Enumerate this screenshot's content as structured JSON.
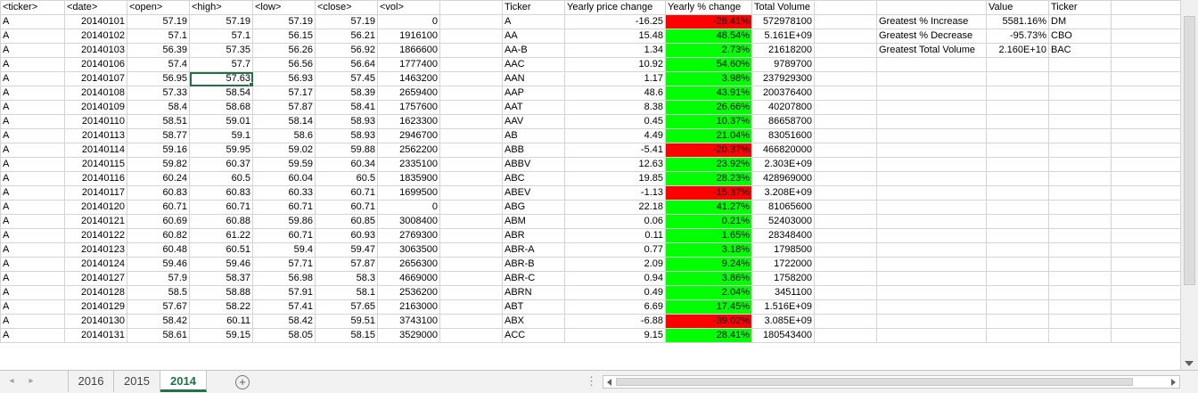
{
  "headers": {
    "ticker": "<ticker>",
    "date": "<date>",
    "open": "<open>",
    "high": "<high>",
    "low": "<low>",
    "close": "<close>",
    "vol": "<vol>",
    "sum_ticker": "Ticker",
    "yearly_price_change": "Yearly price change",
    "yearly_pct_change": "Yearly % change",
    "total_volume": "Total Volume",
    "value": "Value",
    "ticker2": "Ticker"
  },
  "raw_rows": [
    [
      "A",
      "20140101",
      "57.19",
      "57.19",
      "57.19",
      "57.19",
      "0"
    ],
    [
      "A",
      "20140102",
      "57.1",
      "57.1",
      "56.15",
      "56.21",
      "1916100"
    ],
    [
      "A",
      "20140103",
      "56.39",
      "57.35",
      "56.26",
      "56.92",
      "1866600"
    ],
    [
      "A",
      "20140106",
      "57.4",
      "57.7",
      "56.56",
      "56.64",
      "1777400"
    ],
    [
      "A",
      "20140107",
      "56.95",
      "57.63",
      "56.93",
      "57.45",
      "1463200"
    ],
    [
      "A",
      "20140108",
      "57.33",
      "58.54",
      "57.17",
      "58.39",
      "2659400"
    ],
    [
      "A",
      "20140109",
      "58.4",
      "58.68",
      "57.87",
      "58.41",
      "1757600"
    ],
    [
      "A",
      "20140110",
      "58.51",
      "59.01",
      "58.14",
      "58.93",
      "1623300"
    ],
    [
      "A",
      "20140113",
      "58.77",
      "59.1",
      "58.6",
      "58.93",
      "2946700"
    ],
    [
      "A",
      "20140114",
      "59.16",
      "59.95",
      "59.02",
      "59.88",
      "2562200"
    ],
    [
      "A",
      "20140115",
      "59.82",
      "60.37",
      "59.59",
      "60.34",
      "2335100"
    ],
    [
      "A",
      "20140116",
      "60.24",
      "60.5",
      "60.04",
      "60.5",
      "1835900"
    ],
    [
      "A",
      "20140117",
      "60.83",
      "60.83",
      "60.33",
      "60.71",
      "1699500"
    ],
    [
      "A",
      "20140120",
      "60.71",
      "60.71",
      "60.71",
      "60.71",
      "0"
    ],
    [
      "A",
      "20140121",
      "60.69",
      "60.88",
      "59.86",
      "60.85",
      "3008400"
    ],
    [
      "A",
      "20140122",
      "60.82",
      "61.22",
      "60.71",
      "60.93",
      "2769300"
    ],
    [
      "A",
      "20140123",
      "60.48",
      "60.51",
      "59.4",
      "59.47",
      "3063500"
    ],
    [
      "A",
      "20140124",
      "59.46",
      "59.46",
      "57.71",
      "57.87",
      "2656300"
    ],
    [
      "A",
      "20140127",
      "57.9",
      "58.37",
      "56.98",
      "58.3",
      "4669000"
    ],
    [
      "A",
      "20140128",
      "58.5",
      "58.88",
      "57.91",
      "58.1",
      "2536200"
    ],
    [
      "A",
      "20140129",
      "57.67",
      "58.22",
      "57.41",
      "57.65",
      "2163000"
    ],
    [
      "A",
      "20140130",
      "58.42",
      "60.11",
      "58.42",
      "59.51",
      "3743100"
    ],
    [
      "A",
      "20140131",
      "58.61",
      "59.15",
      "58.05",
      "58.15",
      "3529000"
    ]
  ],
  "summary_rows": [
    [
      "A",
      "-16.25",
      "-28.41%",
      "572978100"
    ],
    [
      "AA",
      "15.48",
      "48.54%",
      "5.161E+09"
    ],
    [
      "AA-B",
      "1.34",
      "2.73%",
      "21618200"
    ],
    [
      "AAC",
      "10.92",
      "54.60%",
      "9789700"
    ],
    [
      "AAN",
      "1.17",
      "3.98%",
      "237929300"
    ],
    [
      "AAP",
      "48.6",
      "43.91%",
      "200376400"
    ],
    [
      "AAT",
      "8.38",
      "26.66%",
      "40207800"
    ],
    [
      "AAV",
      "0.45",
      "10.37%",
      "86658700"
    ],
    [
      "AB",
      "4.49",
      "21.04%",
      "83051600"
    ],
    [
      "ABB",
      "-5.41",
      "-20.37%",
      "466820000"
    ],
    [
      "ABBV",
      "12.63",
      "23.92%",
      "2.303E+09"
    ],
    [
      "ABC",
      "19.85",
      "28.23%",
      "428969000"
    ],
    [
      "ABEV",
      "-1.13",
      "-15.37%",
      "3.208E+09"
    ],
    [
      "ABG",
      "22.18",
      "41.27%",
      "81065600"
    ],
    [
      "ABM",
      "0.06",
      "0.21%",
      "52403000"
    ],
    [
      "ABR",
      "0.11",
      "1.65%",
      "28348400"
    ],
    [
      "ABR-A",
      "0.77",
      "3.18%",
      "1798500"
    ],
    [
      "ABR-B",
      "2.09",
      "9.24%",
      "1722000"
    ],
    [
      "ABR-C",
      "0.94",
      "3.86%",
      "1758200"
    ],
    [
      "ABRN",
      "0.49",
      "2.04%",
      "3451100"
    ],
    [
      "ABT",
      "6.69",
      "17.45%",
      "1.516E+09"
    ],
    [
      "ABX",
      "-6.88",
      "-39.02%",
      "3.085E+09"
    ],
    [
      "ACC",
      "9.15",
      "28.41%",
      "180543400"
    ]
  ],
  "greatest": [
    {
      "label": "Greatest % Increase",
      "value": "5581.16%",
      "ticker": "DM"
    },
    {
      "label": "Greatest % Decrease",
      "value": "-95.73%",
      "ticker": "CBO"
    },
    {
      "label": "Greatest Total Volume",
      "value": "2.160E+10",
      "ticker": "BAC"
    }
  ],
  "colors": {
    "positive_fill": "#00ff00",
    "negative_fill": "#ff0000",
    "active_tab": "#217346",
    "gridline": "#d4d4d4"
  },
  "sheet_tabs": [
    {
      "label": "2016",
      "active": false
    },
    {
      "label": "2015",
      "active": false
    },
    {
      "label": "2014",
      "active": true
    }
  ],
  "icons": {
    "nav_prev": "◂",
    "nav_next": "▸",
    "add_sheet": "+",
    "more": "⋮"
  }
}
